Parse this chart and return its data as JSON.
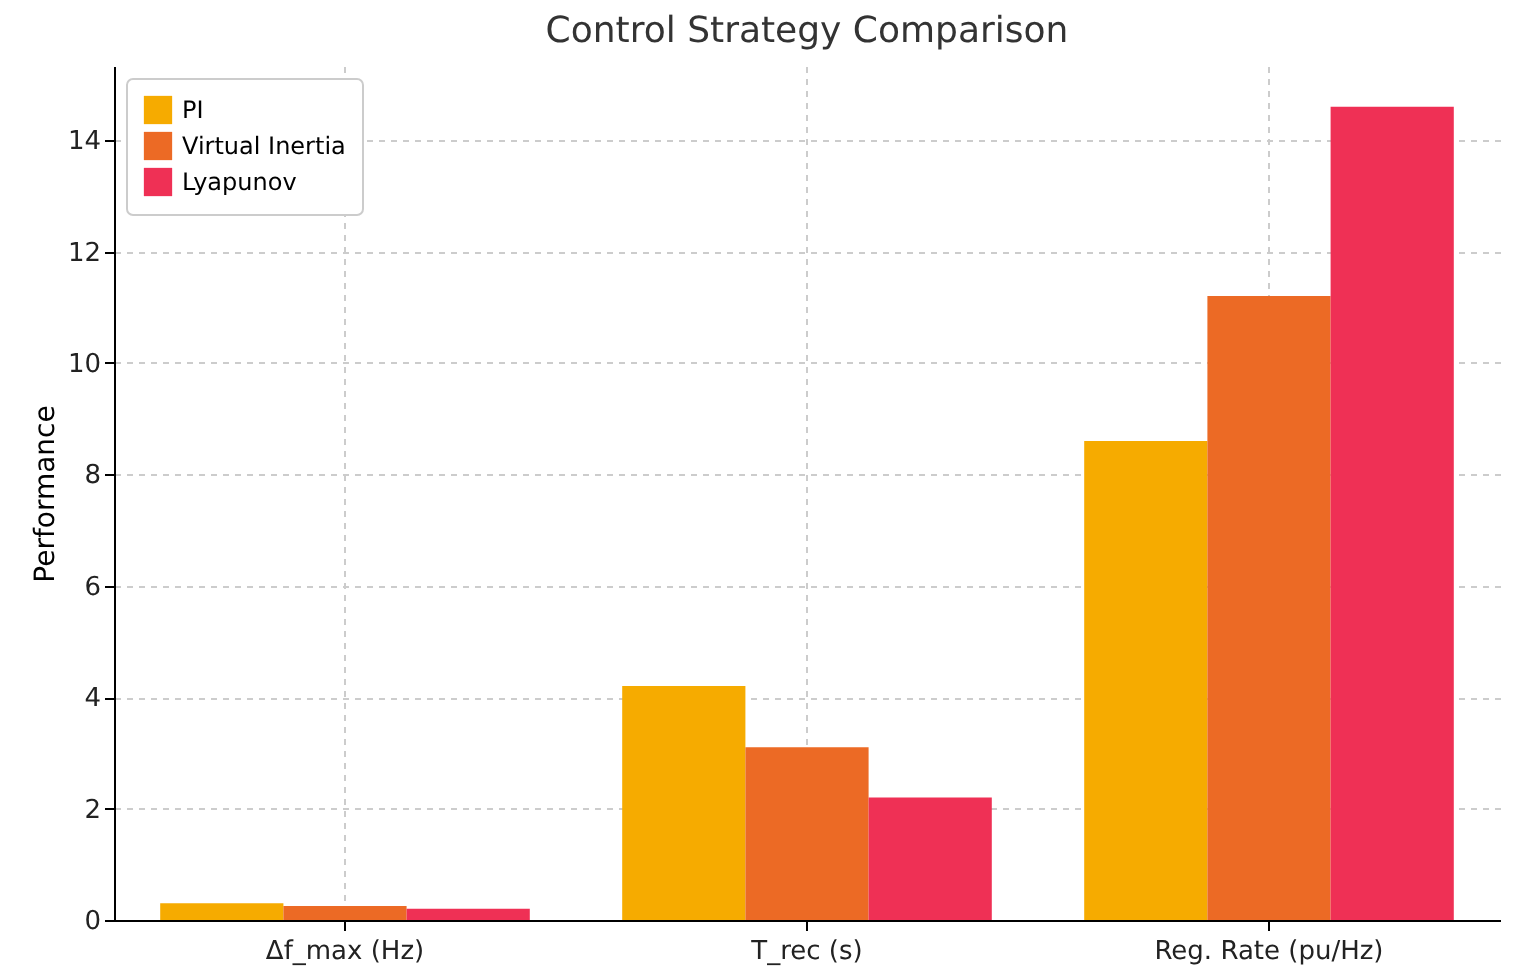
{
  "chart_data": {
    "type": "bar",
    "title": "Control Strategy Comparison",
    "ylabel": "Performance",
    "categories": [
      "Δf_max (Hz)",
      "T_rec (s)",
      "Reg. Rate (pu/Hz)"
    ],
    "series": [
      {
        "name": "PI",
        "color": "#f6ab00",
        "values": [
          0.3,
          4.2,
          8.6
        ]
      },
      {
        "name": "Virtual Inertia",
        "color": "#ec6a25",
        "values": [
          0.25,
          3.1,
          11.2
        ]
      },
      {
        "name": "Lyapunov",
        "color": "#ef3055",
        "values": [
          0.2,
          2.2,
          14.6
        ]
      }
    ],
    "ylim": [
      0,
      15.33
    ],
    "yticks": [
      0,
      2,
      4,
      6,
      8,
      10,
      12,
      14
    ],
    "grid": true,
    "legend": "top left"
  }
}
